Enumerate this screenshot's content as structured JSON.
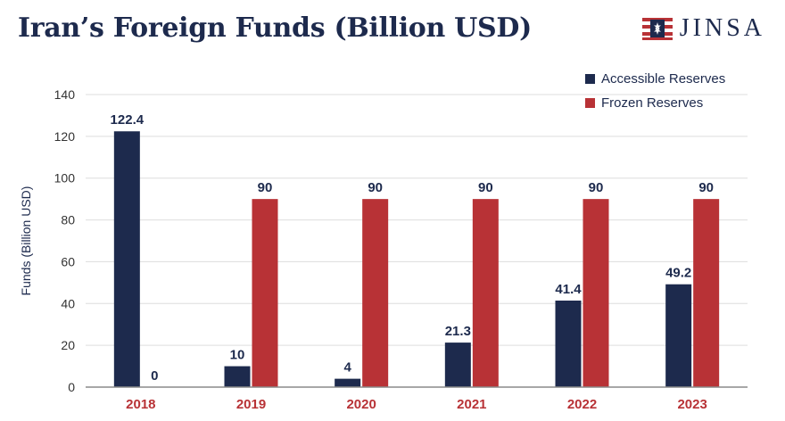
{
  "header": {
    "title": "Iran’s Foreign Funds (Billion USD)",
    "logo_text": "JINSA"
  },
  "colors": {
    "accessible": "#1d2a4d",
    "frozen": "#b83236",
    "grid": "#dddddd",
    "axis": "#8a8a8a"
  },
  "chart_data": {
    "type": "bar",
    "title": "Iran’s Foreign Funds (Billion USD)",
    "xlabel": "",
    "ylabel": "Funds (Billion USD)",
    "ylim": [
      0,
      140
    ],
    "yticks": [
      0,
      20,
      40,
      60,
      80,
      100,
      120,
      140
    ],
    "grid": true,
    "legend_position": "top-right",
    "categories": [
      "2018",
      "2019",
      "2020",
      "2021",
      "2022",
      "2023"
    ],
    "series": [
      {
        "name": "Accessible Reserves",
        "values": [
          122.4,
          10,
          4,
          21.3,
          41.4,
          49.2
        ],
        "labels": [
          "122.4",
          "10",
          "4",
          "21.3",
          "41.4",
          "49.2"
        ]
      },
      {
        "name": "Frozen Reserves",
        "values": [
          0,
          90,
          90,
          90,
          90,
          90
        ],
        "labels": [
          "0",
          "90",
          "90",
          "90",
          "90",
          "90"
        ]
      }
    ]
  }
}
